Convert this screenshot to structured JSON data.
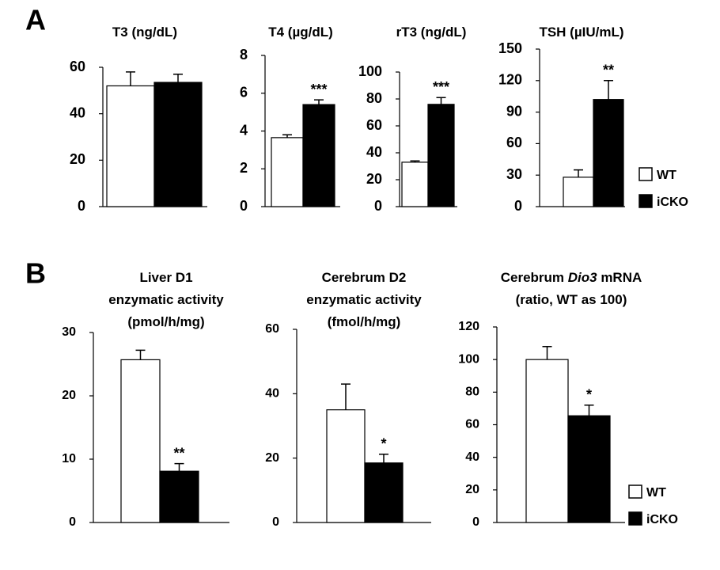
{
  "panel_labels": [
    "A",
    "B"
  ],
  "legend": [
    {
      "name": "WT",
      "color": "#ffffff"
    },
    {
      "name": "iCKO",
      "color": "#000000"
    }
  ],
  "chart_data": [
    {
      "type": "bar",
      "title": [
        [
          {
            "text": "T3 (ng/dL)"
          }
        ]
      ],
      "values": [
        52,
        53.5
      ],
      "errors": [
        6,
        3.5
      ],
      "ylim": [
        0,
        60
      ],
      "yticks": [
        0,
        20,
        40,
        60
      ]
    },
    {
      "type": "bar",
      "title": [
        [
          {
            "text": "T4 (µg/dL)"
          }
        ]
      ],
      "values": [
        3.65,
        5.4
      ],
      "errors": [
        0.15,
        0.25
      ],
      "ylim": [
        0,
        8
      ],
      "yticks": [
        0,
        2,
        4,
        6,
        8
      ],
      "annotation": "***"
    },
    {
      "type": "bar",
      "title": [
        [
          {
            "text": "rT3 (ng/dL)"
          }
        ]
      ],
      "values": [
        33,
        76
      ],
      "errors": [
        1,
        5
      ],
      "ylim": [
        0,
        100
      ],
      "yticks": [
        0,
        20,
        40,
        60,
        80,
        100
      ],
      "annotation": "***"
    },
    {
      "type": "bar",
      "title": [
        [
          {
            "text": "TSH (µIU/mL)"
          }
        ]
      ],
      "values": [
        28,
        102
      ],
      "errors": [
        7,
        18
      ],
      "ylim": [
        0,
        150
      ],
      "yticks": [
        0,
        30,
        60,
        90,
        120,
        150
      ],
      "annotation": "**"
    },
    {
      "type": "bar",
      "title": [
        [
          {
            "text": "Liver D1"
          }
        ],
        [
          {
            "text": "enzymatic activity"
          }
        ],
        [
          {
            "text": "(pmol/h/mg)"
          }
        ]
      ],
      "values": [
        25.7,
        8.1
      ],
      "errors": [
        1.5,
        1.2
      ],
      "ylim": [
        0,
        30
      ],
      "yticks": [
        0,
        10,
        20,
        30
      ],
      "annotation": "**"
    },
    {
      "type": "bar",
      "title": [
        [
          {
            "text": "Cerebrum D2"
          }
        ],
        [
          {
            "text": "enzymatic activity"
          }
        ],
        [
          {
            "text": "(fmol/h/mg)"
          }
        ]
      ],
      "values": [
        35,
        18.5
      ],
      "errors": [
        8,
        2.7
      ],
      "ylim": [
        0,
        60
      ],
      "yticks": [
        0,
        20,
        40,
        60
      ],
      "annotation": "*"
    },
    {
      "type": "bar",
      "title": [
        [
          {
            "text": "Cerebrum "
          },
          {
            "text": "Dio3",
            "italic": true
          },
          {
            "text": " mRNA"
          }
        ],
        [
          {
            "text": "(ratio, WT as 100)"
          }
        ]
      ],
      "values": [
        100,
        65.5
      ],
      "errors": [
        8,
        6.5
      ],
      "ylim": [
        0,
        120
      ],
      "yticks": [
        0,
        20,
        40,
        60,
        80,
        100,
        120
      ],
      "annotation": "*"
    }
  ]
}
